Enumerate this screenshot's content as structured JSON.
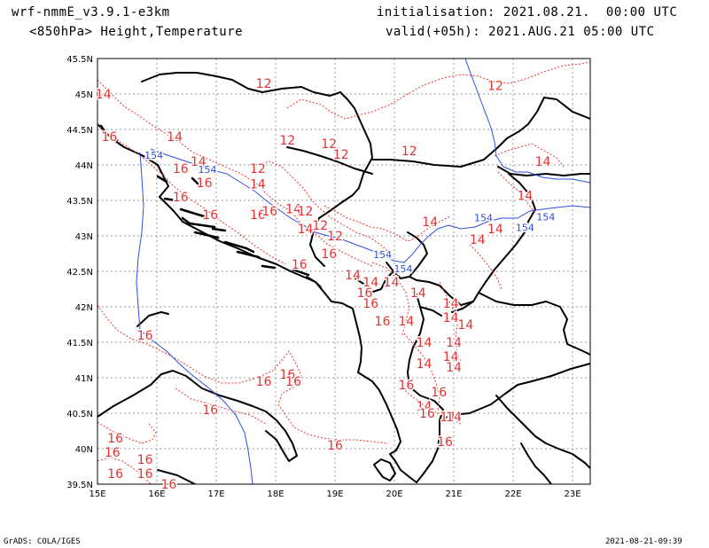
{
  "header": {
    "model": "wrf-nmmE_v3.9.1-e3km",
    "initialisation": "initialisation: 2021.08.21.  00:00 UTC",
    "level_field": "<850hPa> Height,Temperature",
    "valid": "valid(+05h): 2021.AUG.21 05:00 UTC"
  },
  "footer": {
    "credit": "GrADS: COLA/IGES",
    "timestamp": "2021-08-21-09:39"
  },
  "axes": {
    "lat_labels": [
      "45.5N",
      "45N",
      "44.5N",
      "44N",
      "43.5N",
      "43N",
      "42.5N",
      "42N",
      "41.5N",
      "41N",
      "40.5N",
      "40N",
      "39.5N"
    ],
    "lon_labels": [
      "15E",
      "16E",
      "17E",
      "18E",
      "19E",
      "20E",
      "21E",
      "22E",
      "23E"
    ]
  },
  "colors": {
    "temperature_contour": "#e63232",
    "height_contour": "#2e4ee0",
    "coastline": "#000000",
    "grid": "#9a9a9a"
  },
  "temperature_labels": [
    {
      "text": "14",
      "lon": 15.1,
      "lat": 45.0
    },
    {
      "text": "16",
      "lon": 15.2,
      "lat": 44.4
    },
    {
      "text": "14",
      "lon": 16.3,
      "lat": 44.4
    },
    {
      "text": "14",
      "lon": 16.7,
      "lat": 44.05
    },
    {
      "text": "16",
      "lon": 16.4,
      "lat": 43.95
    },
    {
      "text": "16",
      "lon": 16.4,
      "lat": 43.55
    },
    {
      "text": "16",
      "lon": 16.8,
      "lat": 43.75
    },
    {
      "text": "16",
      "lon": 16.9,
      "lat": 43.3
    },
    {
      "text": "12",
      "lon": 17.8,
      "lat": 45.15
    },
    {
      "text": "12",
      "lon": 18.2,
      "lat": 44.35
    },
    {
      "text": "12",
      "lon": 18.9,
      "lat": 44.3
    },
    {
      "text": "12",
      "lon": 19.1,
      "lat": 44.15
    },
    {
      "text": "12",
      "lon": 17.7,
      "lat": 43.95
    },
    {
      "text": "14",
      "lon": 17.7,
      "lat": 43.73
    },
    {
      "text": "16",
      "lon": 17.7,
      "lat": 43.3
    },
    {
      "text": "16",
      "lon": 17.9,
      "lat": 43.35
    },
    {
      "text": "14",
      "lon": 18.3,
      "lat": 43.38
    },
    {
      "text": "12",
      "lon": 18.5,
      "lat": 43.35
    },
    {
      "text": "14",
      "lon": 18.5,
      "lat": 43.1
    },
    {
      "text": "12",
      "lon": 18.75,
      "lat": 43.15
    },
    {
      "text": "12",
      "lon": 19.0,
      "lat": 43.0
    },
    {
      "text": "16",
      "lon": 18.9,
      "lat": 42.75
    },
    {
      "text": "16",
      "lon": 18.4,
      "lat": 42.6
    },
    {
      "text": "12",
      "lon": 20.25,
      "lat": 44.2
    },
    {
      "text": "12",
      "lon": 21.7,
      "lat": 45.12
    },
    {
      "text": "14",
      "lon": 22.5,
      "lat": 44.05
    },
    {
      "text": "14",
      "lon": 22.2,
      "lat": 43.57
    },
    {
      "text": "14",
      "lon": 20.6,
      "lat": 43.2
    },
    {
      "text": "14",
      "lon": 21.4,
      "lat": 42.95
    },
    {
      "text": "14",
      "lon": 21.7,
      "lat": 43.1
    },
    {
      "text": "14",
      "lon": 19.3,
      "lat": 42.45
    },
    {
      "text": "14",
      "lon": 19.6,
      "lat": 42.35
    },
    {
      "text": "14",
      "lon": 19.95,
      "lat": 42.35
    },
    {
      "text": "16",
      "lon": 19.5,
      "lat": 42.2
    },
    {
      "text": "14",
      "lon": 20.4,
      "lat": 42.2
    },
    {
      "text": "14",
      "lon": 20.95,
      "lat": 42.05
    },
    {
      "text": "16",
      "lon": 19.6,
      "lat": 42.05
    },
    {
      "text": "16",
      "lon": 19.8,
      "lat": 41.8
    },
    {
      "text": "14",
      "lon": 20.2,
      "lat": 41.8
    },
    {
      "text": "14",
      "lon": 20.95,
      "lat": 41.85
    },
    {
      "text": "14",
      "lon": 21.2,
      "lat": 41.75
    },
    {
      "text": "14",
      "lon": 20.5,
      "lat": 41.5
    },
    {
      "text": "14",
      "lon": 21.0,
      "lat": 41.5
    },
    {
      "text": "14",
      "lon": 20.95,
      "lat": 41.3
    },
    {
      "text": "14",
      "lon": 20.5,
      "lat": 41.2
    },
    {
      "text": "14",
      "lon": 21.0,
      "lat": 41.15
    },
    {
      "text": "16",
      "lon": 15.8,
      "lat": 41.6
    },
    {
      "text": "16",
      "lon": 18.2,
      "lat": 41.05
    },
    {
      "text": "16",
      "lon": 18.3,
      "lat": 40.95
    },
    {
      "text": "16",
      "lon": 17.8,
      "lat": 40.95
    },
    {
      "text": "16",
      "lon": 16.9,
      "lat": 40.55
    },
    {
      "text": "16",
      "lon": 20.2,
      "lat": 40.9
    },
    {
      "text": "14",
      "lon": 20.5,
      "lat": 40.6
    },
    {
      "text": "14",
      "lon": 20.9,
      "lat": 40.45
    },
    {
      "text": "14",
      "lon": 21.0,
      "lat": 40.45
    },
    {
      "text": "16",
      "lon": 20.85,
      "lat": 40.1
    },
    {
      "text": "16",
      "lon": 19.0,
      "lat": 40.05
    },
    {
      "text": "16",
      "lon": 15.3,
      "lat": 40.15
    },
    {
      "text": "16",
      "lon": 15.25,
      "lat": 39.95
    },
    {
      "text": "16",
      "lon": 15.8,
      "lat": 39.85
    },
    {
      "text": "16",
      "lon": 15.3,
      "lat": 39.65
    },
    {
      "text": "16",
      "lon": 15.8,
      "lat": 39.65
    },
    {
      "text": "16",
      "lon": 16.2,
      "lat": 39.5
    },
    {
      "text": "16",
      "lon": 20.75,
      "lat": 40.8
    },
    {
      "text": "16",
      "lon": 20.55,
      "lat": 40.5
    }
  ],
  "height_labels": [
    {
      "text": "154",
      "lon": 15.95,
      "lat": 44.15
    },
    {
      "text": "154",
      "lon": 16.85,
      "lat": 43.95
    },
    {
      "text": "154",
      "lon": 19.8,
      "lat": 42.75
    },
    {
      "text": "154",
      "lon": 20.15,
      "lat": 42.55
    },
    {
      "text": "154",
      "lon": 21.5,
      "lat": 43.27
    },
    {
      "text": "154",
      "lon": 22.2,
      "lat": 43.13
    },
    {
      "text": "154",
      "lon": 22.55,
      "lat": 43.28
    }
  ]
}
